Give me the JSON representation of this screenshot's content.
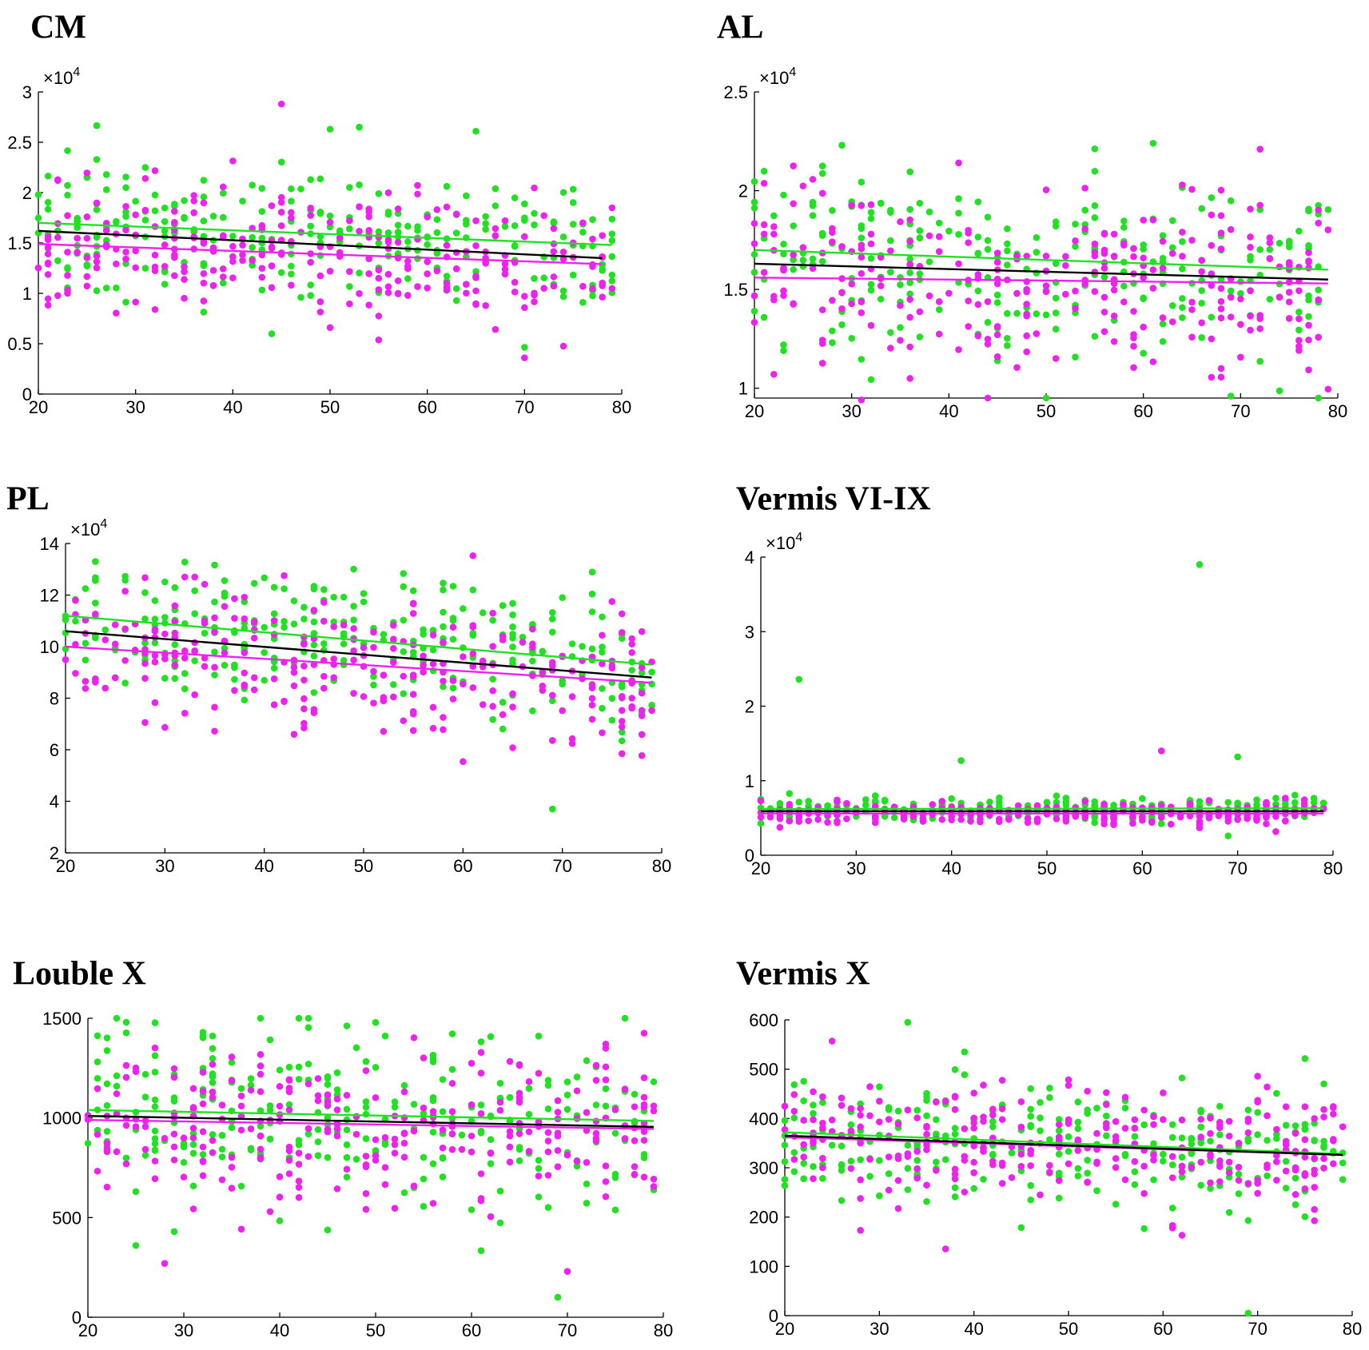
{
  "colors": {
    "green": "#22e022",
    "magenta": "#ee22ee",
    "black": "#000000"
  },
  "series_names": [
    "green",
    "magenta",
    "black"
  ],
  "chart_data": [
    {
      "type": "scatter",
      "title": "CM",
      "multiplier": "×10",
      "exponent": "4",
      "xlim": [
        20,
        80
      ],
      "ylim": [
        0,
        30000
      ],
      "xticks": [
        20,
        30,
        40,
        50,
        60,
        70,
        80
      ],
      "xtick_labels": [
        "20",
        "30",
        "40",
        "50",
        "60",
        "70",
        "80"
      ],
      "yticks": [
        0,
        5000,
        10000,
        15000,
        20000,
        25000,
        30000
      ],
      "ytick_labels": [
        "0",
        "0.5",
        "1",
        "1.5",
        "2",
        "2.5",
        "3"
      ],
      "fit_lines": {
        "green": [
          [
            20,
            17000
          ],
          [
            79,
            14800
          ]
        ],
        "magenta": [
          [
            20,
            14900
          ],
          [
            78,
            12900
          ]
        ],
        "black": [
          [
            20,
            16200
          ],
          [
            78,
            13500
          ]
        ]
      },
      "outliers": {
        "green": [
          [
            53,
            26500
          ],
          [
            65,
            26100
          ],
          [
            50,
            26300
          ]
        ],
        "magenta": [
          [
            45,
            28800
          ],
          [
            70,
            3600
          ],
          [
            50,
            6600
          ]
        ]
      },
      "mean": 15500,
      "spread": 3000
    },
    {
      "type": "scatter",
      "title": "AL",
      "multiplier": "×10",
      "exponent": "4",
      "xlim": [
        20,
        80
      ],
      "ylim": [
        9500,
        25000
      ],
      "xticks": [
        20,
        30,
        40,
        50,
        60,
        70,
        80
      ],
      "xtick_labels": [
        "20",
        "30",
        "40",
        "50",
        "60",
        "70",
        "80"
      ],
      "yticks": [
        10000,
        15000,
        20000,
        25000
      ],
      "ytick_labels": [
        "1",
        "1.5",
        "2",
        "2.5"
      ],
      "fit_lines": {
        "green": [
          [
            20,
            17000
          ],
          [
            79,
            16000
          ]
        ],
        "magenta": [
          [
            20,
            15600
          ],
          [
            79,
            15300
          ]
        ],
        "black": [
          [
            20,
            16300
          ],
          [
            79,
            15500
          ]
        ]
      },
      "outliers": {
        "green": [
          [
            29,
            22300
          ],
          [
            61,
            22400
          ],
          [
            69,
            9600
          ]
        ],
        "magenta": [
          [
            31,
            9400
          ],
          [
            72,
            22100
          ],
          [
            22,
            10700
          ]
        ]
      },
      "mean": 16000,
      "spread": 2400
    },
    {
      "type": "scatter",
      "title": "PL",
      "multiplier": "×10",
      "exponent": "4",
      "xlim": [
        20,
        80
      ],
      "ylim": [
        20000,
        140000
      ],
      "xticks": [
        20,
        30,
        40,
        50,
        60,
        70,
        80
      ],
      "xtick_labels": [
        "20",
        "30",
        "40",
        "50",
        "60",
        "70",
        "80"
      ],
      "yticks": [
        20000,
        40000,
        60000,
        80000,
        100000,
        120000,
        140000
      ],
      "ytick_labels": [
        "2",
        "4",
        "6",
        "8",
        "10",
        "12",
        "14"
      ],
      "fit_lines": {
        "green": [
          [
            20,
            112000
          ],
          [
            79,
            93000
          ]
        ],
        "magenta": [
          [
            20,
            100000
          ],
          [
            79,
            86000
          ]
        ],
        "black": [
          [
            20,
            106000
          ],
          [
            79,
            88000
          ]
        ]
      },
      "outliers": {
        "green": [
          [
            69,
            37000
          ],
          [
            23,
            133000
          ]
        ],
        "magenta": [
          [
            33,
            127000
          ],
          [
            43,
            66000
          ]
        ]
      },
      "mean": 98000,
      "spread": 13000
    },
    {
      "type": "scatter",
      "title": "Vermis VI-IX",
      "multiplier": "×10",
      "exponent": "4",
      "xlim": [
        20,
        80
      ],
      "ylim": [
        0,
        40000
      ],
      "xticks": [
        20,
        30,
        40,
        50,
        60,
        70,
        80
      ],
      "xtick_labels": [
        "20",
        "30",
        "40",
        "50",
        "60",
        "70",
        "80"
      ],
      "yticks": [
        0,
        10000,
        20000,
        30000,
        40000
      ],
      "ytick_labels": [
        "0",
        "1",
        "2",
        "3",
        "4"
      ],
      "fit_lines": {
        "green": [
          [
            20,
            6200
          ],
          [
            79,
            6300
          ]
        ],
        "magenta": [
          [
            20,
            5600
          ],
          [
            79,
            5600
          ]
        ],
        "black": [
          [
            20,
            5900
          ],
          [
            79,
            5900
          ]
        ]
      },
      "outliers": {
        "green": [
          [
            66,
            39000
          ],
          [
            24,
            23600
          ],
          [
            41,
            12700
          ],
          [
            70,
            13200
          ],
          [
            69,
            2600
          ]
        ],
        "magenta": [
          [
            62,
            14000
          ]
        ]
      },
      "mean": 5800,
      "spread": 800
    },
    {
      "type": "scatter",
      "title": "Louble X",
      "multiplier": "",
      "exponent": "",
      "xlim": [
        20,
        80
      ],
      "ylim": [
        0,
        1500
      ],
      "xticks": [
        20,
        30,
        40,
        50,
        60,
        70,
        80
      ],
      "xtick_labels": [
        "20",
        "30",
        "40",
        "50",
        "60",
        "70",
        "80"
      ],
      "yticks": [
        0,
        500,
        1000,
        1500
      ],
      "ytick_labels": [
        "0",
        "500",
        "1000",
        "1500"
      ],
      "fit_lines": {
        "green": [
          [
            20,
            1040
          ],
          [
            79,
            985
          ]
        ],
        "magenta": [
          [
            20,
            990
          ],
          [
            79,
            945
          ]
        ],
        "black": [
          [
            20,
            1010
          ],
          [
            79,
            955
          ]
        ]
      },
      "outliers": {
        "green": [
          [
            69,
            100
          ],
          [
            24,
            1480
          ],
          [
            25,
            360
          ],
          [
            29,
            430
          ]
        ],
        "magenta": [
          [
            28,
            270
          ],
          [
            70,
            230
          ]
        ]
      },
      "mean": 985,
      "spread": 200
    },
    {
      "type": "scatter",
      "title": "Vermis X",
      "multiplier": "",
      "exponent": "",
      "xlim": [
        20,
        80
      ],
      "ylim": [
        0,
        600
      ],
      "xticks": [
        20,
        30,
        40,
        50,
        60,
        70,
        80
      ],
      "xtick_labels": [
        "20",
        "30",
        "40",
        "50",
        "60",
        "70",
        "80"
      ],
      "yticks": [
        0,
        100,
        200,
        300,
        400,
        500,
        600
      ],
      "ytick_labels": [
        "0",
        "100",
        "200",
        "300",
        "400",
        "500",
        "600"
      ],
      "fit_lines": {
        "green": [
          [
            20,
            372
          ],
          [
            79,
            328
          ]
        ],
        "magenta": [
          [
            20,
            362
          ],
          [
            79,
            326
          ]
        ],
        "black": [
          [
            20,
            365
          ],
          [
            79,
            326
          ]
        ]
      },
      "outliers": {
        "green": [
          [
            33,
            595
          ],
          [
            69,
            5
          ],
          [
            39,
            535
          ]
        ],
        "magenta": [
          [
            25,
            557
          ],
          [
            28,
            173
          ],
          [
            62,
            163
          ]
        ]
      },
      "mean": 350,
      "spread": 60
    }
  ]
}
